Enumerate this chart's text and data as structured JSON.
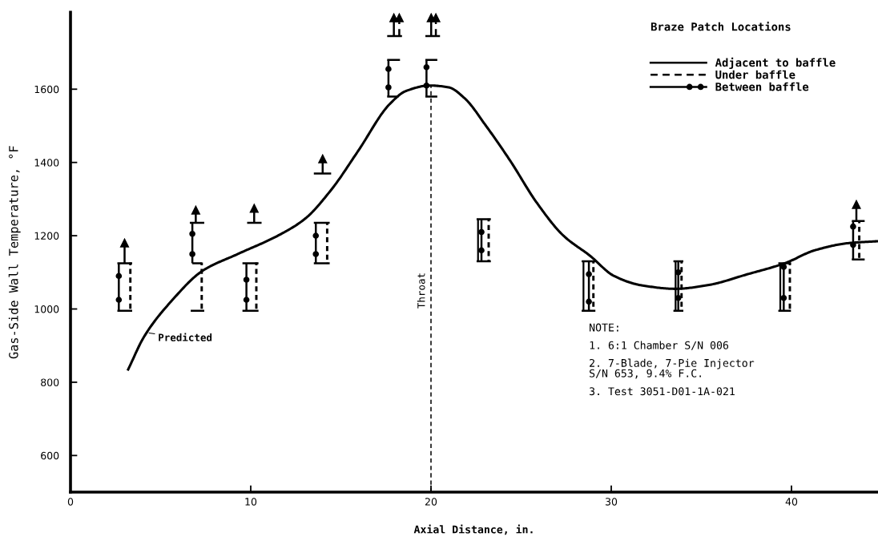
{
  "chart_data": {
    "type": "line",
    "xlabel": "Axial Distance, in.",
    "ylabel": "Gas-Side Wall Temperature, °F",
    "legend_title": "Braze Patch Locations",
    "legend": "top right",
    "line_style": "solid",
    "xlim": [
      0,
      44.8
    ],
    "xticks": [
      0,
      10,
      20,
      30,
      40
    ],
    "ylim": [
      500,
      1810
    ],
    "yticks": [
      600,
      800,
      1000,
      1200,
      1400,
      1600
    ],
    "ref_lines": [
      {
        "axis": "x",
        "value": 20,
        "label": "Throat",
        "line_style": "dashed"
      }
    ],
    "annotations": [
      {
        "text": "Predicted",
        "x": 4.3,
        "y": 935
      },
      "NOTE:",
      "1. 6:1 Chamber S/N 006",
      "2. 7-Blade, 7-Pie Injector\nS/N 653, 9.4% F.C.",
      "3. Test 3051-D01-1A-021"
    ],
    "series": [
      {
        "color": "#000000",
        "x": [
          3.2,
          4.09,
          5.57,
          7.35,
          9.28,
          11.5,
          12.98,
          14.46,
          15.94,
          17.72,
          18.61,
          19.94,
          20.98,
          21.87,
          23.05,
          24.39,
          25.87,
          27.35,
          28.83,
          30.16,
          31.64,
          33.57,
          35.35,
          37.57,
          39.64,
          41.28,
          43.2,
          44.8
        ],
        "values": [
          835,
          925,
          1020,
          1105,
          1150,
          1200,
          1245,
          1325,
          1430,
          1560,
          1595,
          1610,
          1605,
          1575,
          1500,
          1405,
          1290,
          1200,
          1145,
          1090,
          1065,
          1055,
          1065,
          1095,
          1125,
          1160,
          1180,
          1185
        ]
      },
      {
        "name": "Adjacent to baffle",
        "type": "bar",
        "line_style": "solid",
        "color": "#000000",
        "x": [
          22.61,
          28.46,
          33.57,
          39.38
        ],
        "base": [
          1130,
          995,
          995,
          995
        ],
        "values": [
          115,
          135,
          135,
          130
        ]
      },
      {
        "name": "Under baffle",
        "type": "bar",
        "line_style": "dashed",
        "color": "#000000",
        "x": [
          3.32,
          7.28,
          10.31,
          14.24,
          23.2,
          29.01,
          33.9,
          39.91,
          43.76
        ],
        "base": [
          995,
          995,
          995,
          1125,
          1130,
          995,
          995,
          995,
          1135
        ],
        "values": [
          130,
          130,
          130,
          110,
          115,
          135,
          135,
          130,
          105
        ]
      },
      {
        "name": "Between baffle",
        "type": "scatter",
        "marker": "circle",
        "line_style": "solid",
        "color": "#000000",
        "x": [
          2.68,
          2.68,
          6.76,
          6.76,
          9.76,
          9.76,
          13.61,
          13.61,
          17.64,
          17.64,
          19.75,
          19.75,
          22.8,
          22.8,
          28.76,
          28.76,
          33.72,
          33.72,
          39.57,
          39.57,
          43.42,
          43.42
        ],
        "values": [
          1090,
          1025,
          1205,
          1150,
          1080,
          1025,
          1200,
          1150,
          1655,
          1605,
          1660,
          1610,
          1210,
          1160,
          1095,
          1020,
          1100,
          1030,
          1115,
          1030,
          1225,
          1175
        ],
        "errors": [
          [
            995,
            1125
          ],
          null,
          [
            1125,
            1235
          ],
          null,
          [
            995,
            1125
          ],
          null,
          [
            1125,
            1235
          ],
          null,
          [
            1580,
            1680
          ],
          null,
          [
            1580,
            1680
          ],
          null,
          [
            1130,
            1245
          ],
          null,
          [
            995,
            1130
          ],
          null,
          [
            995,
            1130
          ],
          null,
          [
            995,
            1125
          ],
          null,
          [
            1135,
            1240
          ],
          null
        ]
      },
      {
        "type": "line",
        "color": "#000000",
        "x": [
          2.6,
          3.42,
          null,
          6.62,
          7.42,
          null,
          9.8,
          10.6,
          null,
          13.5,
          14.46,
          null,
          17.57,
          18.39,
          null,
          19.69,
          20.5,
          null,
          22.53,
          23.32,
          null,
          28.36,
          29.12,
          null,
          33.45,
          34.0,
          null,
          39.27,
          39.97,
          null,
          43.35,
          44.06
        ],
        "values": [
          1125,
          1125,
          null,
          1235,
          1235,
          null,
          1235,
          1235,
          null,
          1370,
          1370,
          null,
          1745,
          1745,
          null,
          1745,
          1745,
          null,
          1245,
          1245,
          null,
          1130,
          1130,
          null,
          1130,
          1130,
          null,
          1125,
          1125,
          null,
          1240,
          1240
        ]
      },
      {
        "type": "line",
        "color": "#000000",
        "x": [
          2.6,
          3.42,
          null,
          6.76,
          7.28,
          null,
          9.54,
          10.43,
          null,
          13.5,
          14.38,
          null,
          17.57,
          18.28,
          null,
          19.69,
          20.35,
          null,
          22.53,
          23.32,
          null,
          28.36,
          29.12,
          null,
          33.45,
          34.0,
          null,
          39.27,
          39.97,
          null,
          43.35,
          44.06
        ],
        "values": [
          995,
          995,
          null,
          1125,
          1125,
          null,
          1125,
          1125,
          null,
          1235,
          1235,
          null,
          1680,
          1680,
          null,
          1680,
          1680,
          null,
          1130,
          1130,
          null,
          995,
          995,
          null,
          995,
          995,
          null,
          995,
          995,
          null,
          1135,
          1135
        ]
      },
      {
        "type": "line",
        "color": "#000000",
        "x": [
          6.67,
          7.42,
          null,
          9.54,
          10.43,
          null,
          13.5,
          14.38,
          null,
          17.57,
          18.2,
          null,
          19.69,
          20.35
        ],
        "values": [
          995,
          995,
          null,
          995,
          995,
          null,
          1125,
          1125,
          null,
          1580,
          1580,
          null,
          1580,
          1580
        ]
      },
      {
        "type": "scatter",
        "marker": "triangle",
        "line_style": "solid",
        "color": "#000000",
        "x": [
          3.0,
          6.95,
          10.19,
          13.99,
          17.94,
          20.01,
          43.6
        ],
        "values": [
          1180,
          1270,
          1275,
          1410,
          1795,
          1795,
          1285
        ],
        "errors": [
          [
            1125,
            1180
          ],
          [
            1235,
            1270
          ],
          [
            1235,
            1275
          ],
          [
            1370,
            1410
          ],
          [
            1745,
            1795
          ],
          [
            1745,
            1795
          ],
          [
            1240,
            1285
          ]
        ]
      },
      {
        "type": "scatter",
        "marker": "triangle",
        "line_style": "dashed",
        "color": "#000000",
        "x": [
          18.24,
          20.27
        ],
        "values": [
          1795,
          1795
        ],
        "errors": [
          [
            1745,
            1795
          ],
          [
            1745,
            1795
          ]
        ]
      }
    ]
  }
}
